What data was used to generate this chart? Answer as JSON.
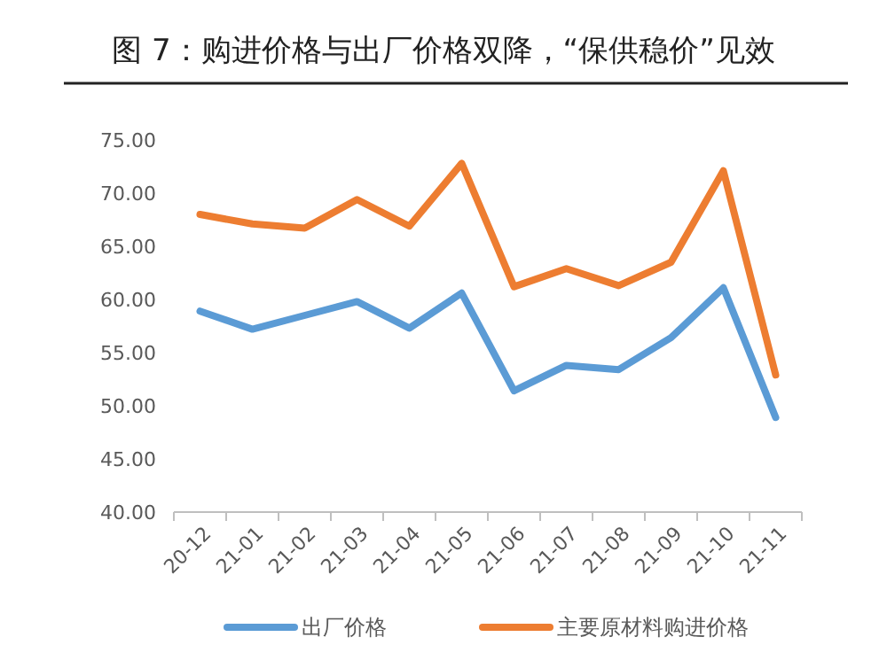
{
  "chart_data": {
    "type": "line",
    "title": "图 7：购进价格与出厂价格双降，“保供稳价”见效",
    "categories": [
      "20-12",
      "21-01",
      "21-02",
      "21-03",
      "21-04",
      "21-05",
      "21-06",
      "21-07",
      "21-08",
      "21-09",
      "21-10",
      "21-11"
    ],
    "series": [
      {
        "name": "出厂价格",
        "color": "#5b9bd5",
        "values": [
          58.9,
          57.2,
          58.5,
          59.8,
          57.3,
          60.6,
          51.4,
          53.8,
          53.4,
          56.4,
          61.1,
          48.9
        ]
      },
      {
        "name": "主要原材料购进价格",
        "color": "#ed7d31",
        "values": [
          68.0,
          67.1,
          66.7,
          69.4,
          66.9,
          72.8,
          61.2,
          62.9,
          61.3,
          63.5,
          72.1,
          52.9
        ]
      }
    ],
    "ylim": [
      40,
      75
    ],
    "yticks": [
      {
        "value": 40,
        "label": "40.00"
      },
      {
        "value": 45,
        "label": "45.00"
      },
      {
        "value": 50,
        "label": "50.00"
      },
      {
        "value": 55,
        "label": "55.00"
      },
      {
        "value": 60,
        "label": "60.00"
      },
      {
        "value": 65,
        "label": "65.00"
      },
      {
        "value": 70,
        "label": "70.00"
      },
      {
        "value": 75,
        "label": "75.00"
      }
    ],
    "grid": false,
    "legend": "bottom",
    "marker": "none",
    "line_style": "solid"
  }
}
